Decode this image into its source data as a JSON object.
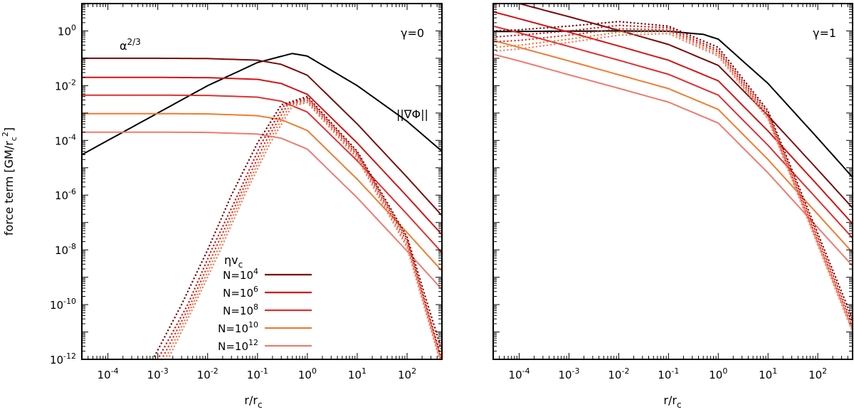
{
  "chart_data": [
    {
      "type": "line",
      "panel": "left",
      "annotation_gamma": "γ=0",
      "annotation_alpha": "α^{2/3}",
      "annotation_eta": "ηv_c",
      "annotation_grad": "||∇Φ||",
      "xlabel": "r/r_c",
      "ylabel": "force term [GM/r_c^2]",
      "x_scale": "log",
      "y_scale": "log",
      "xlim": [
        3e-05,
        500
      ],
      "ylim": [
        1e-12,
        10
      ],
      "x_ticks": [
        {
          "value": 0.0001,
          "label": "10^{-4}"
        },
        {
          "value": 0.001,
          "label": "10^{-3}"
        },
        {
          "value": 0.01,
          "label": "10^{-2}"
        },
        {
          "value": 0.1,
          "label": "10^{-1}"
        },
        {
          "value": 1,
          "label": "10^{0}"
        },
        {
          "value": 10,
          "label": "10^{1}"
        },
        {
          "value": 100,
          "label": "10^{2}"
        }
      ],
      "y_ticks": [
        {
          "value": 1,
          "label": "10^{0}"
        },
        {
          "value": 0.01,
          "label": "10^{-2}"
        },
        {
          "value": 0.0001,
          "label": "10^{-4}"
        },
        {
          "value": 1e-06,
          "label": "10^{-6}"
        },
        {
          "value": 1e-08,
          "label": "10^{-8}"
        },
        {
          "value": 1e-10,
          "label": "10^{-10}"
        },
        {
          "value": 1e-12,
          "label": "10^{-12}"
        }
      ],
      "legend": {
        "placement": "bottom-center",
        "entries": [
          {
            "label": "N=10^{4}",
            "color": "#7a0a0a"
          },
          {
            "label": "N=10^{6}",
            "color": "#d41414"
          },
          {
            "label": "N=10^{8}",
            "color": "#e03030"
          },
          {
            "label": "N=10^{10}",
            "color": "#f07c30"
          },
          {
            "label": "N=10^{12}",
            "color": "#f07a70"
          }
        ]
      },
      "series": [
        {
          "kind": "gradient",
          "style": "solid",
          "color": "#000000",
          "x": [
            3e-05,
            0.0001,
            0.001,
            0.01,
            0.1,
            0.5,
            1,
            10,
            100,
            500
          ],
          "y": [
            3e-05,
            0.0001,
            0.001,
            0.01,
            0.07,
            0.15,
            0.12,
            0.01,
            0.0005,
            4e-05
          ]
        },
        {
          "kind": "alpha",
          "style": "solid",
          "color": "#7a0a0a",
          "x": [
            3e-05,
            0.001,
            0.01,
            0.1,
            0.3,
            1,
            10,
            100,
            500
          ],
          "y": [
            0.1,
            0.1,
            0.098,
            0.085,
            0.06,
            0.024,
            0.0004,
            4.5e-06,
            1.8e-07
          ]
        },
        {
          "kind": "alpha",
          "style": "solid",
          "color": "#d41414",
          "x": [
            3e-05,
            0.001,
            0.01,
            0.1,
            0.3,
            1,
            10,
            100,
            500
          ],
          "y": [
            0.02,
            0.02,
            0.0196,
            0.017,
            0.012,
            0.0048,
            8e-05,
            9e-07,
            3.6e-08
          ]
        },
        {
          "kind": "alpha",
          "style": "solid",
          "color": "#e03030",
          "x": [
            3e-05,
            0.001,
            0.01,
            0.1,
            0.3,
            1,
            10,
            100,
            500
          ],
          "y": [
            0.0045,
            0.0045,
            0.0044,
            0.0038,
            0.0027,
            0.00108,
            1.8e-05,
            2e-07,
            8e-09
          ]
        },
        {
          "kind": "alpha",
          "style": "solid",
          "color": "#f07c30",
          "x": [
            3e-05,
            0.001,
            0.01,
            0.1,
            0.3,
            1,
            10,
            100,
            500
          ],
          "y": [
            0.00095,
            0.00095,
            0.00093,
            0.0008,
            0.00057,
            0.00023,
            3.8e-06,
            4.3e-08,
            1.7e-09
          ]
        },
        {
          "kind": "alpha",
          "style": "solid",
          "color": "#f07a70",
          "x": [
            3e-05,
            0.001,
            0.01,
            0.1,
            0.3,
            1,
            10,
            100,
            500
          ],
          "y": [
            0.0002,
            0.0002,
            0.000196,
            0.00017,
            0.00012,
            4.8e-05,
            8e-07,
            9e-09,
            3.6e-10
          ]
        },
        {
          "kind": "eta",
          "style": "dotted",
          "color": "#7a0a0a",
          "x": [
            0.0008,
            0.003,
            0.01,
            0.03,
            0.1,
            0.3,
            1,
            10,
            100,
            500
          ],
          "y": [
            1e-12,
            1e-10,
            1e-08,
            1e-06,
            8e-05,
            0.002,
            0.004,
            4e-05,
            3e-08,
            2e-12
          ]
        },
        {
          "kind": "eta",
          "style": "dotted",
          "color": "#d41414",
          "x": [
            0.001,
            0.004,
            0.012,
            0.04,
            0.12,
            0.35,
            1,
            10,
            100,
            500
          ],
          "y": [
            1e-12,
            1e-10,
            1e-08,
            1e-06,
            8e-05,
            0.002,
            0.0035,
            3.5e-05,
            2.5e-08,
            1e-12
          ]
        },
        {
          "kind": "eta",
          "style": "dotted",
          "color": "#e03030",
          "x": [
            0.0012,
            0.0045,
            0.014,
            0.045,
            0.14,
            0.4,
            1,
            10,
            100,
            500
          ],
          "y": [
            1e-12,
            1e-10,
            1e-08,
            1e-06,
            8e-05,
            0.002,
            0.003,
            3e-05,
            2e-08,
            8e-13
          ]
        },
        {
          "kind": "eta",
          "style": "dotted",
          "color": "#f07c30",
          "x": [
            0.0014,
            0.005,
            0.016,
            0.05,
            0.16,
            0.45,
            1,
            10,
            100,
            500
          ],
          "y": [
            1e-12,
            1e-10,
            1e-08,
            1e-06,
            8e-05,
            0.0019,
            0.0027,
            2.6e-05,
            1.5e-08,
            6e-13
          ]
        },
        {
          "kind": "eta",
          "style": "dotted",
          "color": "#f07a70",
          "x": [
            0.0016,
            0.0055,
            0.018,
            0.055,
            0.18,
            0.5,
            1,
            10,
            100,
            500
          ],
          "y": [
            1e-12,
            1e-10,
            1e-08,
            1e-06,
            8e-05,
            0.0018,
            0.0024,
            2.2e-05,
            1.2e-08,
            5e-13
          ]
        }
      ]
    },
    {
      "type": "line",
      "panel": "right",
      "annotation_gamma": "γ=1",
      "xlabel": "r/r_c",
      "ylabel": "",
      "x_scale": "log",
      "y_scale": "log",
      "xlim": [
        3e-05,
        500
      ],
      "ylim": [
        1e-12,
        10
      ],
      "x_ticks": [
        {
          "value": 0.0001,
          "label": "10^{-4}"
        },
        {
          "value": 0.001,
          "label": "10^{-3}"
        },
        {
          "value": 0.01,
          "label": "10^{-2}"
        },
        {
          "value": 0.1,
          "label": "10^{-1}"
        },
        {
          "value": 1,
          "label": "10^{0}"
        },
        {
          "value": 10,
          "label": "10^{1}"
        },
        {
          "value": 100,
          "label": "10^{2}"
        }
      ],
      "series": [
        {
          "kind": "gradient",
          "style": "solid",
          "color": "#000000",
          "x": [
            3e-05,
            0.001,
            0.01,
            0.1,
            0.5,
            1,
            10,
            100,
            500
          ],
          "y": [
            0.95,
            0.98,
            1.0,
            0.97,
            0.75,
            0.5,
            0.012,
            0.00012,
            4.5e-06
          ]
        },
        {
          "kind": "alpha",
          "style": "solid",
          "color": "#7a0a0a",
          "x": [
            3e-05,
            0.0001,
            0.001,
            0.01,
            0.1,
            1,
            10,
            100,
            500
          ],
          "y": [
            18,
            10,
            3.3,
            1.05,
            0.32,
            0.055,
            0.0008,
            8.5e-06,
            3.4e-07
          ]
        },
        {
          "kind": "alpha",
          "style": "solid",
          "color": "#d41414",
          "x": [
            3e-05,
            0.0001,
            0.001,
            0.01,
            0.1,
            1,
            10,
            100,
            500
          ],
          "y": [
            5,
            2.8,
            0.9,
            0.28,
            0.085,
            0.015,
            0.00022,
            2.3e-06,
            9e-08
          ]
        },
        {
          "kind": "alpha",
          "style": "solid",
          "color": "#e03030",
          "x": [
            3e-05,
            0.0001,
            0.001,
            0.01,
            0.1,
            1,
            10,
            100,
            500
          ],
          "y": [
            1.5,
            0.85,
            0.27,
            0.085,
            0.026,
            0.0045,
            6.6e-05,
            6.8e-07,
            2.7e-08
          ]
        },
        {
          "kind": "alpha",
          "style": "solid",
          "color": "#f07c30",
          "x": [
            3e-05,
            0.0001,
            0.001,
            0.01,
            0.1,
            1,
            10,
            100,
            500
          ],
          "y": [
            0.45,
            0.25,
            0.08,
            0.025,
            0.0078,
            0.00135,
            2e-05,
            2e-07,
            8e-09
          ]
        },
        {
          "kind": "alpha",
          "style": "solid",
          "color": "#f07a70",
          "x": [
            3e-05,
            0.0001,
            0.001,
            0.01,
            0.1,
            1,
            10,
            100,
            500
          ],
          "y": [
            0.14,
            0.08,
            0.025,
            0.008,
            0.0025,
            0.00043,
            6.5e-06,
            6.5e-08,
            2.6e-09
          ]
        },
        {
          "kind": "eta",
          "style": "dotted",
          "color": "#7a0a0a",
          "x": [
            3e-05,
            0.0001,
            0.001,
            0.01,
            0.1,
            1,
            10,
            100,
            500
          ],
          "y": [
            1.0,
            1.1,
            1.5,
            2.2,
            1.5,
            0.25,
            0.0012,
            4e-08,
            3e-11
          ]
        },
        {
          "kind": "eta",
          "style": "dotted",
          "color": "#d41414",
          "x": [
            3e-05,
            0.0001,
            0.001,
            0.01,
            0.1,
            1,
            10,
            100,
            500
          ],
          "y": [
            0.6,
            0.7,
            1.0,
            1.6,
            1.3,
            0.2,
            0.001,
            3e-08,
            2e-11
          ]
        },
        {
          "kind": "eta",
          "style": "dotted",
          "color": "#e03030",
          "x": [
            3e-05,
            0.0001,
            0.001,
            0.01,
            0.1,
            1,
            10,
            100,
            500
          ],
          "y": [
            0.4,
            0.45,
            0.7,
            1.2,
            1.1,
            0.17,
            0.0008,
            2.2e-08,
            1.5e-11
          ]
        },
        {
          "kind": "eta",
          "style": "dotted",
          "color": "#f07c30",
          "x": [
            3e-05,
            0.0001,
            0.001,
            0.01,
            0.1,
            1,
            10,
            100,
            500
          ],
          "y": [
            0.25,
            0.3,
            0.5,
            0.9,
            0.95,
            0.14,
            0.0007,
            1.8e-08,
            1.2e-11
          ]
        },
        {
          "kind": "eta",
          "style": "dotted",
          "color": "#f07a70",
          "x": [
            3e-05,
            0.0001,
            0.001,
            0.01,
            0.1,
            1,
            10,
            100,
            500
          ],
          "y": [
            0.18,
            0.22,
            0.38,
            0.7,
            0.8,
            0.12,
            0.0006,
            1.5e-08,
            1e-11
          ]
        }
      ]
    }
  ]
}
